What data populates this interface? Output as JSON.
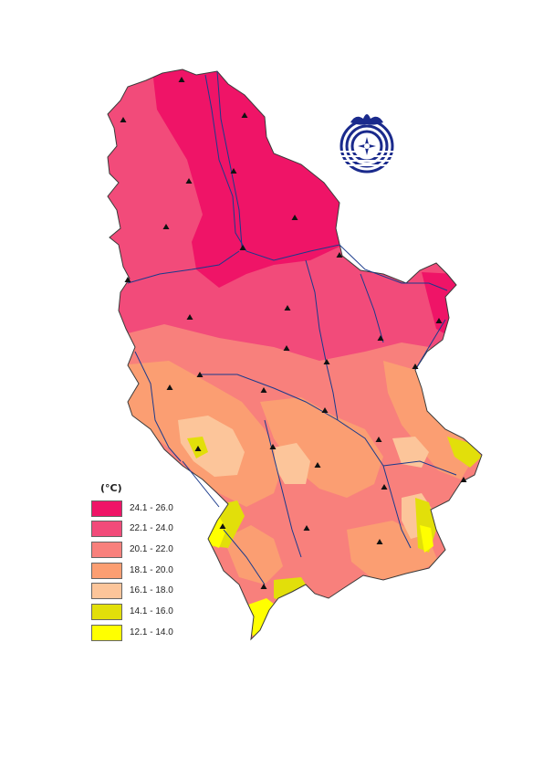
{
  "legend": {
    "unit": "(°C)",
    "classes": [
      {
        "label": "24.1 - 26.0",
        "color": "#ef1467"
      },
      {
        "label": "22.1 - 24.0",
        "color": "#f24b7a"
      },
      {
        "label": "20.1 - 22.0",
        "color": "#f8807c"
      },
      {
        "label": "18.1 - 20.0",
        "color": "#fb9e72"
      },
      {
        "label": "16.1 - 18.0",
        "color": "#fcc59a"
      },
      {
        "label": "14.1 - 16.0",
        "color": "#e2df0a"
      },
      {
        "label": "12.1 - 14.0",
        "color": "#ffff00"
      }
    ]
  },
  "logo": {
    "name": "hydrometeorological-service-logo",
    "color": "#1a2a8c"
  },
  "station_icon": "triangle-station-marker",
  "river_color": "#1a3a8c"
}
